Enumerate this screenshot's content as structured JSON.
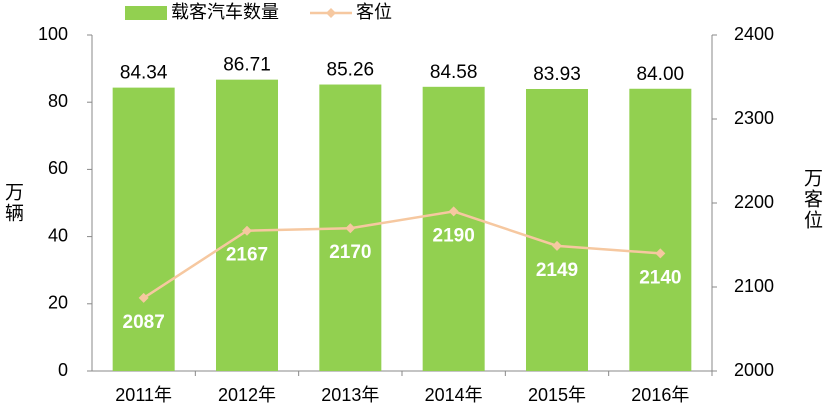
{
  "chart_data": {
    "type": "bar",
    "categories": [
      "2011年",
      "2012年",
      "2013年",
      "2014年",
      "2015年",
      "2016年"
    ],
    "series": [
      {
        "name": "载客汽车数量",
        "type": "bar",
        "color": "#92d050",
        "values": [
          84.34,
          86.71,
          85.26,
          84.58,
          83.93,
          84.0
        ],
        "value_labels": [
          "84.34",
          "86.71",
          "85.26",
          "84.58",
          "83.93",
          "84.00"
        ]
      },
      {
        "name": "客位",
        "type": "line",
        "axis": "y2",
        "color": "#f6c8a0",
        "values": [
          2087,
          2167,
          2170,
          2190,
          2149,
          2140
        ]
      }
    ],
    "ylabel": "万辆",
    "y2label": "万客位",
    "ylim": [
      0,
      100
    ],
    "yticks": [
      0,
      20,
      40,
      60,
      80,
      100
    ],
    "y2lim": [
      2000,
      2400
    ],
    "y2ticks": [
      2000,
      2100,
      2200,
      2300,
      2400
    ],
    "grid": false,
    "legend": "top"
  }
}
